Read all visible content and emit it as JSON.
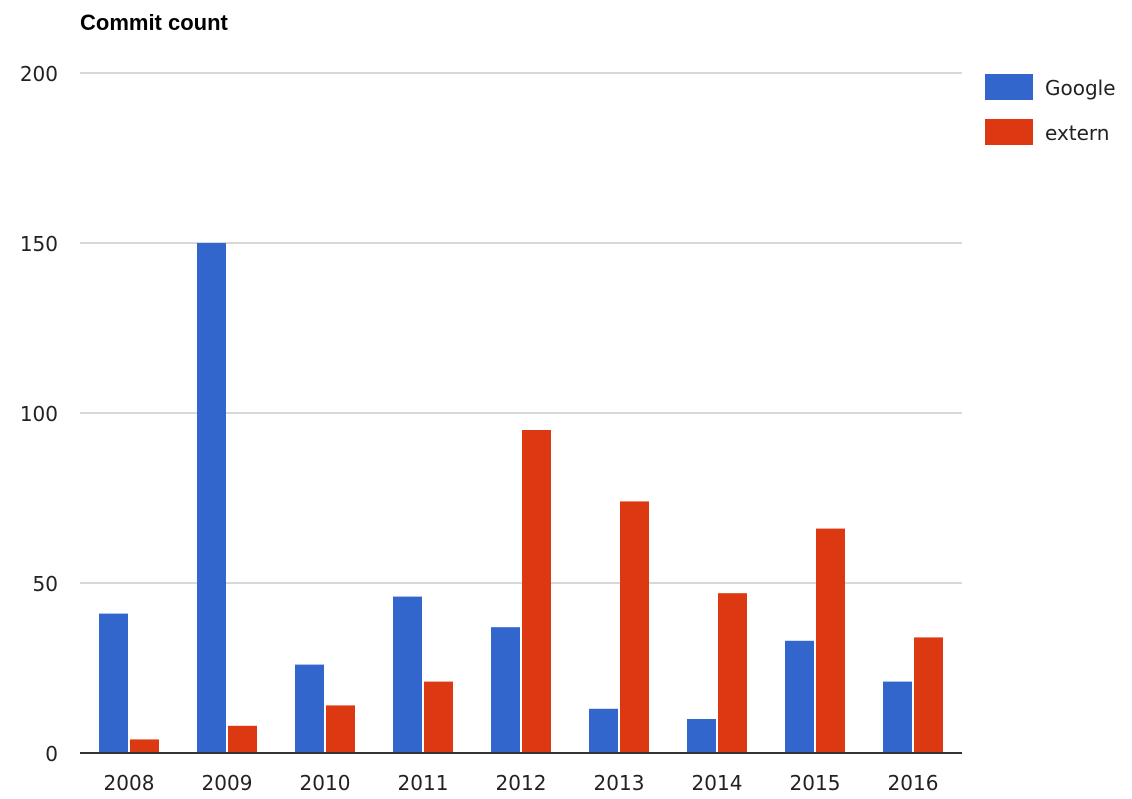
{
  "chart_data": {
    "type": "bar",
    "title": "Commit count",
    "xlabel": "",
    "ylabel": "",
    "ylim": [
      0,
      200
    ],
    "yticks": [
      "0",
      "50",
      "100",
      "150",
      "200"
    ],
    "categories": [
      "2008",
      "2009",
      "2010",
      "2011",
      "2012",
      "2013",
      "2014",
      "2015",
      "2016"
    ],
    "series": [
      {
        "name": "Google",
        "color": "#3366cc",
        "values": [
          41,
          150,
          26,
          46,
          37,
          13,
          10,
          33,
          21
        ]
      },
      {
        "name": "extern",
        "color": "#dc3912",
        "values": [
          4,
          8,
          14,
          21,
          95,
          74,
          47,
          66,
          34
        ]
      }
    ],
    "grid": true,
    "legend_position": "right"
  }
}
